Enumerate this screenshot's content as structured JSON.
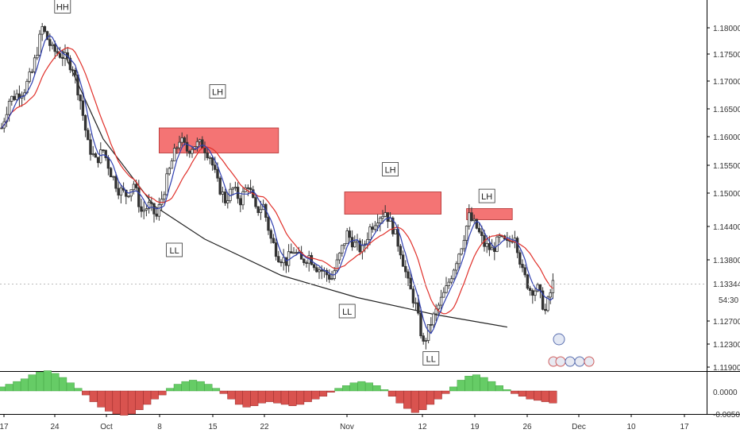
{
  "chart_data": {
    "type": "candlestick",
    "price_axis": {
      "ticks": [
        "1.18000",
        "1.17500",
        "1.17000",
        "1.16500",
        "1.16000",
        "1.15500",
        "1.15000",
        "1.14400",
        "1.13800",
        "1.13344",
        "1.12700",
        "1.12300",
        "1.11900"
      ],
      "current_price": "1.13344",
      "countdown": "54:30",
      "range": [
        1.118,
        1.186
      ]
    },
    "time_axis": {
      "labels": [
        "17",
        "24",
        "Oct",
        "8",
        "15",
        "22",
        "Nov",
        "12",
        "19",
        "26",
        "Dec",
        "10",
        "17"
      ]
    },
    "pivot_labels": [
      "HH",
      "LH",
      "LL",
      "LH",
      "LL",
      "LH",
      "LL"
    ],
    "resistance_zones": [
      {
        "from": "Oct 8",
        "to": "Oct 22",
        "price_low": 1.1575,
        "price_high": 1.162
      },
      {
        "from": "Nov 1",
        "to": "Nov 13",
        "price_low": 1.1465,
        "price_high": 1.1505
      },
      {
        "from": "Nov 19",
        "to": "Nov 23",
        "price_low": 1.1455,
        "price_high": 1.1475
      }
    ],
    "series": [
      {
        "name": "",
        "kind": "price path (approx. closes)",
        "points": [
          [
            0,
            1.162
          ],
          [
            3,
            1.167
          ],
          [
            6,
            1.168
          ],
          [
            9,
            1.169
          ],
          [
            12,
            1.172
          ],
          [
            16,
            1.18
          ],
          [
            20,
            1.176
          ],
          [
            24,
            1.175
          ],
          [
            28,
            1.173
          ],
          [
            31,
            1.167
          ],
          [
            34,
            1.159
          ],
          [
            37,
            1.156
          ],
          [
            40,
            1.158
          ],
          [
            43,
            1.154
          ],
          [
            46,
            1.151
          ],
          [
            49,
            1.15
          ],
          [
            52,
            1.152
          ],
          [
            55,
            1.147
          ],
          [
            58,
            1.148
          ],
          [
            61,
            1.146
          ],
          [
            64,
            1.151
          ],
          [
            67,
            1.156
          ],
          [
            70,
            1.16
          ],
          [
            73,
            1.158
          ],
          [
            76,
            1.159
          ],
          [
            79,
            1.159
          ],
          [
            82,
            1.157
          ],
          [
            85,
            1.152
          ],
          [
            88,
            1.149
          ],
          [
            91,
            1.151
          ],
          [
            94,
            1.149
          ],
          [
            97,
            1.152
          ],
          [
            100,
            1.147
          ],
          [
            103,
            1.148
          ],
          [
            106,
            1.142
          ],
          [
            109,
            1.139
          ],
          [
            112,
            1.138
          ],
          [
            115,
            1.14
          ],
          [
            118,
            1.138
          ],
          [
            121,
            1.139
          ],
          [
            124,
            1.137
          ],
          [
            127,
            1.136
          ],
          [
            130,
            1.135
          ],
          [
            133,
            1.139
          ],
          [
            136,
            1.143
          ],
          [
            139,
            1.141
          ],
          [
            142,
            1.14
          ],
          [
            145,
            1.144
          ],
          [
            148,
            1.146
          ],
          [
            151,
            1.147
          ],
          [
            154,
            1.144
          ],
          [
            157,
            1.14
          ],
          [
            160,
            1.134
          ],
          [
            163,
            1.13
          ],
          [
            166,
            1.123
          ],
          [
            169,
            1.127
          ],
          [
            172,
            1.13
          ],
          [
            175,
            1.133
          ],
          [
            178,
            1.137
          ],
          [
            181,
            1.141
          ],
          [
            184,
            1.146
          ],
          [
            187,
            1.144
          ],
          [
            190,
            1.141
          ],
          [
            193,
            1.14
          ],
          [
            196,
            1.142
          ],
          [
            199,
            1.141
          ],
          [
            202,
            1.143
          ],
          [
            205,
            1.136
          ],
          [
            208,
            1.133
          ],
          [
            211,
            1.133
          ],
          [
            214,
            1.129
          ],
          [
            217,
            1.134
          ]
        ]
      },
      {
        "name": "",
        "kind": "fast moving average"
      },
      {
        "name": "",
        "kind": "slow moving average"
      }
    ],
    "oscillator": {
      "ticks": [
        "0.0000",
        "-0.0050"
      ],
      "bars": [
        3,
        5,
        7,
        9,
        12,
        14,
        15,
        13,
        10,
        6,
        2,
        -3,
        -8,
        -12,
        -15,
        -17,
        -18,
        -17,
        -14,
        -10,
        -6,
        -3,
        2,
        5,
        7,
        8,
        7,
        5,
        2,
        -2,
        -6,
        -10,
        -12,
        -11,
        -9,
        -8,
        -9,
        -10,
        -11,
        -10,
        -8,
        -6,
        -4,
        -1,
        2,
        4,
        6,
        7,
        6,
        4,
        1,
        -4,
        -9,
        -13,
        -16,
        -14,
        -10,
        -6,
        -2,
        3,
        8,
        11,
        12,
        10,
        7,
        4,
        1,
        -2,
        -4,
        -6,
        -7,
        -8,
        -9
      ]
    },
    "trendline": "curved line connecting the lower lows",
    "colors": {
      "candle_body": "#333333",
      "fast_ma": "#2f3fb0",
      "slow_ma": "#e0302a",
      "zone_fill": "#f47474",
      "osc_positive": "#66cc66",
      "osc_negative": "#d9534f",
      "trendline": "#222222"
    },
    "grid": false
  }
}
